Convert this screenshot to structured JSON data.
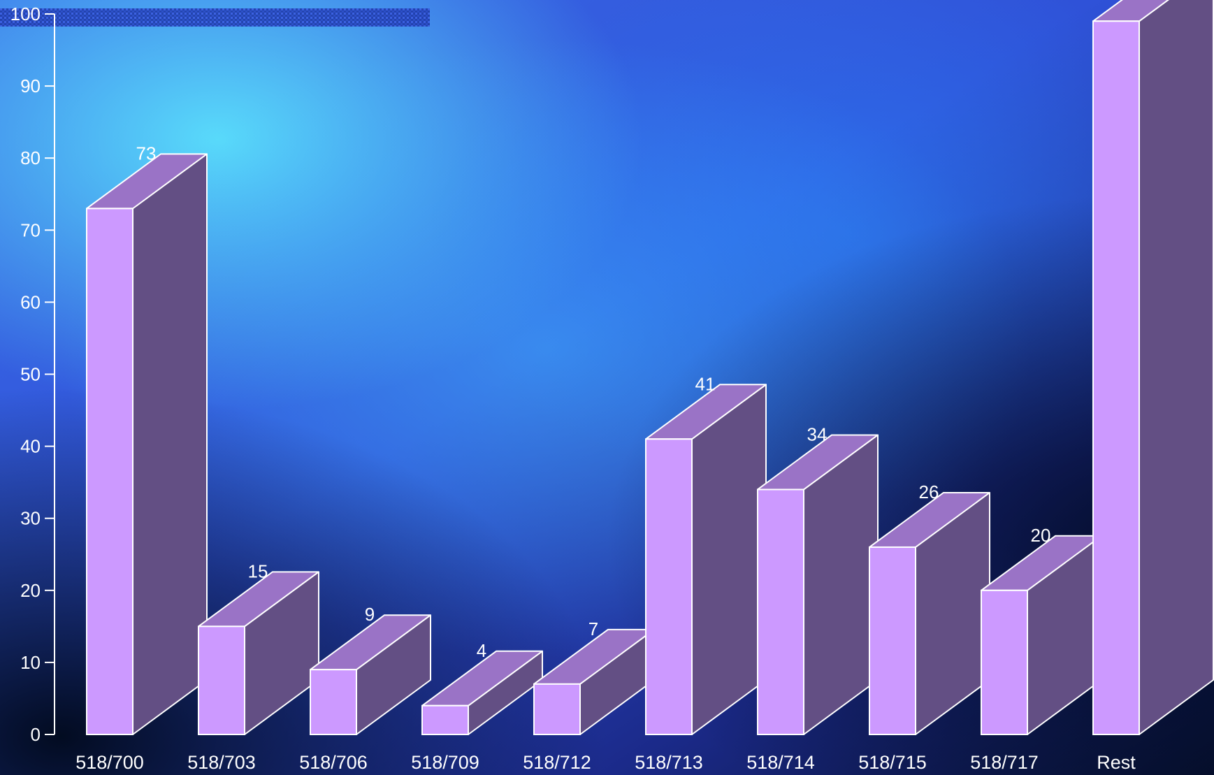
{
  "chart_data": {
    "type": "bar",
    "style": "3d",
    "categories": [
      "518/700",
      "518/703",
      "518/706",
      "518/709",
      "518/712",
      "518/713",
      "518/714",
      "518/715",
      "518/717",
      "Rest"
    ],
    "values": [
      73,
      15,
      9,
      4,
      7,
      41,
      34,
      26,
      20,
      99
    ],
    "data_labels": [
      "73",
      "15",
      "9",
      "4",
      "7",
      "41",
      "34",
      "26",
      "20",
      ""
    ],
    "ylim": [
      0,
      100
    ],
    "yticks": [
      0,
      10,
      20,
      30,
      40,
      50,
      60,
      70,
      80,
      90,
      100
    ],
    "grid": false,
    "legend": "none",
    "colors": {
      "front": "#cc99ff",
      "top": "#9a73c6",
      "side": "#634f84",
      "edge": "#ffffff",
      "axis": "#ffffff",
      "background_dark": "#0a1540",
      "background_light": "#3fb4ff"
    }
  }
}
